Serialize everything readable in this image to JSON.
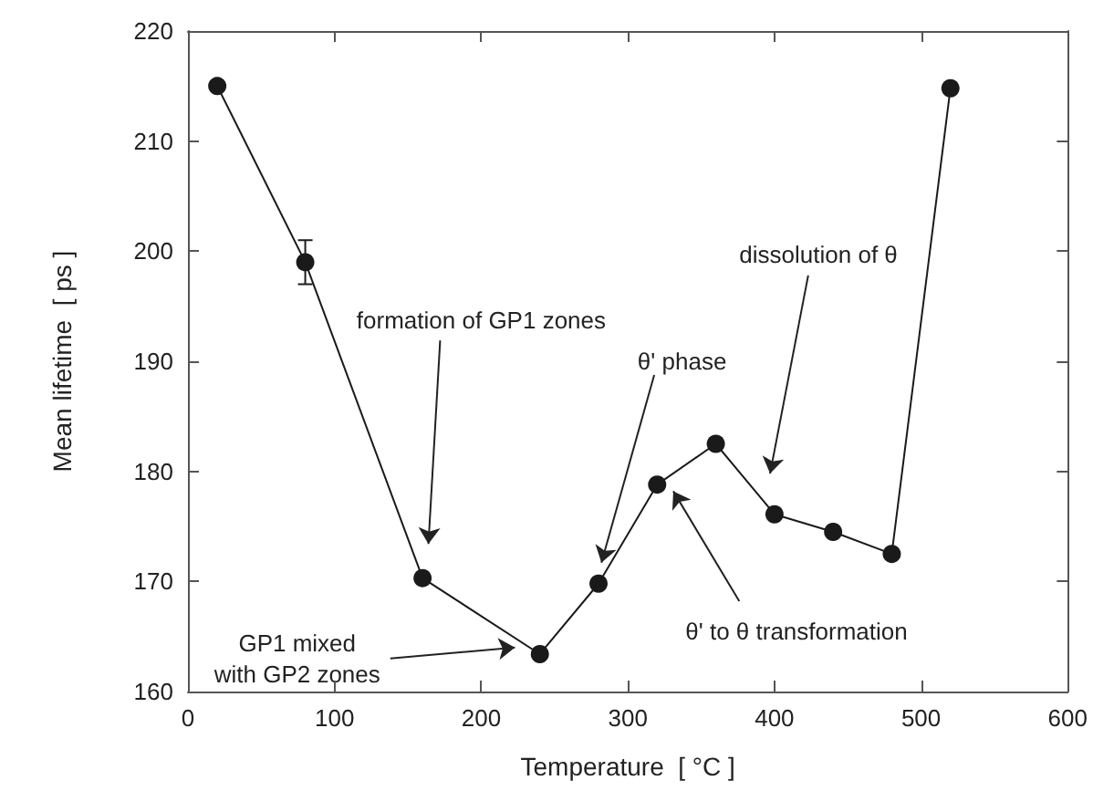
{
  "chart_data": {
    "type": "line",
    "xlabel": "Temperature  [ °C ]",
    "ylabel": "Mean lifetime  [ ps ]",
    "x": [
      20,
      80,
      160,
      240,
      280,
      320,
      360,
      400,
      440,
      480,
      520
    ],
    "series": [
      {
        "color": "#1a1a1a",
        "values": [
          215,
          199,
          170.3,
          163.4,
          169.8,
          178.8,
          182.5,
          176.1,
          174.5,
          172.5,
          214.8
        ],
        "errors": [
          null,
          [
            197,
            201
          ],
          null,
          null,
          null,
          null,
          null,
          null,
          null,
          null,
          null
        ]
      }
    ],
    "xlim": [
      0,
      600
    ],
    "xticks": [
      0,
      100,
      200,
      300,
      400,
      500,
      600
    ],
    "ylim": [
      160,
      220
    ],
    "yticks": [
      160,
      170,
      180,
      190,
      200,
      210,
      220
    ],
    "grid": false,
    "marker": "circle",
    "line_style": "solid",
    "annotations": [
      "formation of GP1 zones",
      {
        "text": "GP1 mixed\nwith GP2 zones",
        "x": 223,
        "y": 164
      },
      {
        "text": "θ' phase",
        "x": 282,
        "y": 171.7
      },
      {
        "text": "θ' to θ transformation",
        "x": 331,
        "y": 178.2
      },
      "dissolution of θ"
    ]
  }
}
